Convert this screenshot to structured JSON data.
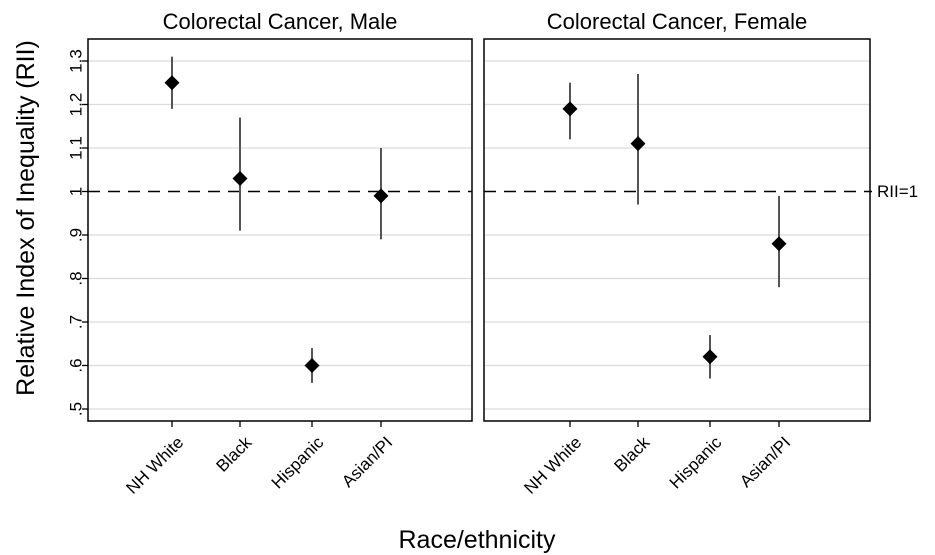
{
  "chart_data": {
    "type": "scatter",
    "subtype": "point-with-error-bars",
    "ylabel": "Relative Index of Inequality (RII)",
    "xlabel": "Race/ethnicity",
    "y_ticks": [
      {
        "value": 0.5,
        "label": ".5"
      },
      {
        "value": 0.6,
        "label": ".6"
      },
      {
        "value": 0.7,
        "label": ".7"
      },
      {
        "value": 0.8,
        "label": ".8"
      },
      {
        "value": 0.9,
        "label": ".9"
      },
      {
        "value": 1.0,
        "label": "1"
      },
      {
        "value": 1.1,
        "label": "1.1"
      },
      {
        "value": 1.2,
        "label": "1.2"
      },
      {
        "value": 1.3,
        "label": "1.3"
      }
    ],
    "ylim": [
      0.47,
      1.35
    ],
    "grid": true,
    "reference_line": {
      "value": 1.0,
      "label": "RII=1",
      "style": "dashed"
    },
    "categories": [
      "NH White",
      "Black",
      "Hispanic",
      "Asian/PI"
    ],
    "panels": [
      {
        "title": "Colorectal Cancer, Male",
        "points": [
          {
            "category": "NH White",
            "estimate": 1.25,
            "lower": 1.19,
            "upper": 1.31
          },
          {
            "category": "Black",
            "estimate": 1.03,
            "lower": 0.91,
            "upper": 1.17
          },
          {
            "category": "Hispanic",
            "estimate": 0.6,
            "lower": 0.56,
            "upper": 0.64
          },
          {
            "category": "Asian/PI",
            "estimate": 0.99,
            "lower": 0.89,
            "upper": 1.1
          }
        ]
      },
      {
        "title": "Colorectal Cancer, Female",
        "points": [
          {
            "category": "NH White",
            "estimate": 1.19,
            "lower": 1.12,
            "upper": 1.25
          },
          {
            "category": "Black",
            "estimate": 1.11,
            "lower": 0.97,
            "upper": 1.27
          },
          {
            "category": "Hispanic",
            "estimate": 0.62,
            "lower": 0.57,
            "upper": 0.67
          },
          {
            "category": "Asian/PI",
            "estimate": 0.88,
            "lower": 0.78,
            "upper": 0.99
          }
        ]
      }
    ]
  }
}
